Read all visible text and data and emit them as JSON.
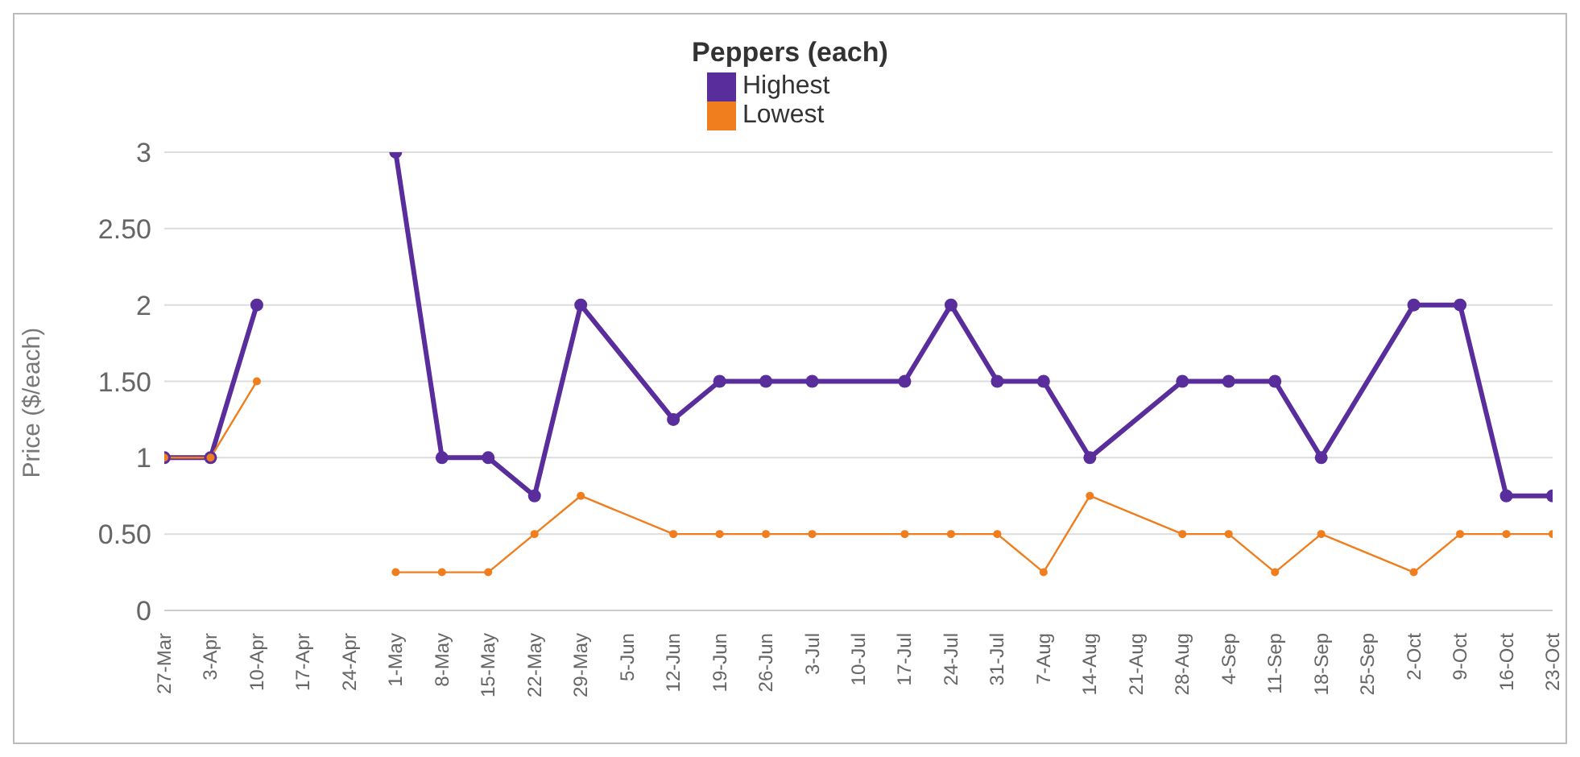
{
  "chart_data": {
    "type": "line",
    "title": "Peppers (each)",
    "ylabel": "Price ($/each)",
    "categories": [
      "27-Mar",
      "3-Apr",
      "10-Apr",
      "17-Apr",
      "24-Apr",
      "1-May",
      "8-May",
      "15-May",
      "22-May",
      "29-May",
      "5-Jun",
      "12-Jun",
      "19-Jun",
      "26-Jun",
      "3-Jul",
      "10-Jul",
      "17-Jul",
      "24-Jul",
      "31-Jul",
      "7-Aug",
      "14-Aug",
      "21-Aug",
      "28-Aug",
      "4-Sep",
      "11-Sep",
      "18-Sep",
      "25-Sep",
      "2-Oct",
      "9-Oct",
      "16-Oct",
      "23-Oct"
    ],
    "series": [
      {
        "name": "Highest",
        "color": "#5a2d9c",
        "x": [
          "27-Mar",
          "3-Apr",
          "10-Apr",
          "17-Apr",
          "1-May",
          "8-May",
          "15-May",
          "22-May",
          "29-May",
          "12-Jun",
          "19-Jun",
          "26-Jun",
          "3-Jul",
          "17-Jul",
          "24-Jul",
          "31-Jul",
          "7-Aug",
          "14-Aug",
          "28-Aug",
          "4-Sep",
          "11-Sep",
          "18-Sep",
          "2-Oct",
          "9-Oct",
          "16-Oct",
          "23-Oct"
        ],
        "values": [
          1,
          1,
          2,
          null,
          3,
          1,
          1,
          0.75,
          2,
          1.25,
          1.5,
          1.5,
          1.5,
          1.5,
          2,
          1.5,
          1.5,
          1,
          1.5,
          1.5,
          1.5,
          1,
          2,
          2,
          0.75,
          0.75
        ]
      },
      {
        "name": "Lowest",
        "color": "#f07d1e",
        "x": [
          "27-Mar",
          "3-Apr",
          "10-Apr",
          "17-Apr",
          "1-May",
          "8-May",
          "15-May",
          "22-May",
          "29-May",
          "12-Jun",
          "19-Jun",
          "26-Jun",
          "3-Jul",
          "17-Jul",
          "24-Jul",
          "31-Jul",
          "7-Aug",
          "14-Aug",
          "28-Aug",
          "4-Sep",
          "11-Sep",
          "18-Sep",
          "2-Oct",
          "9-Oct",
          "16-Oct",
          "23-Oct"
        ],
        "values": [
          1,
          1,
          1.5,
          null,
          0.25,
          0.25,
          0.25,
          0.5,
          0.75,
          0.5,
          0.5,
          0.5,
          0.5,
          0.5,
          0.5,
          0.5,
          0.25,
          0.75,
          0.5,
          0.5,
          0.25,
          0.5,
          0.25,
          0.5,
          0.5,
          0.5
        ]
      }
    ],
    "ylim": [
      0,
      3
    ],
    "yticks": [
      0,
      {
        "value": 0.5,
        "label": "0.50"
      },
      1,
      {
        "value": 1.5,
        "label": "1.50"
      },
      2,
      {
        "value": 2.5,
        "label": "2.50"
      },
      3
    ],
    "grid": "y",
    "legend": "top",
    "marker": "circle"
  }
}
